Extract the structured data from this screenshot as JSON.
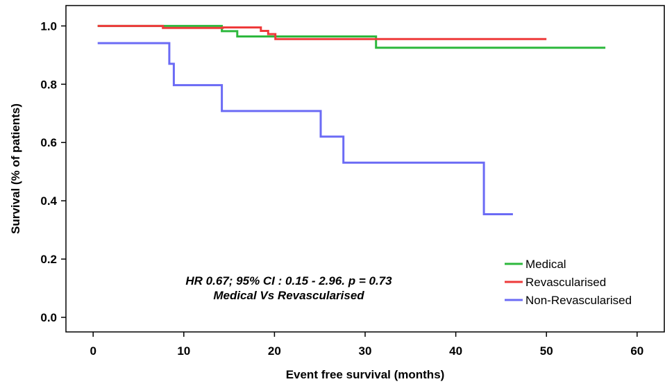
{
  "chart_data": {
    "type": "line",
    "step": true,
    "xlabel": "Event free survival (months)",
    "ylabel": "Survival (% of patients)",
    "xlim": [
      -3,
      63
    ],
    "ylim": [
      -0.05,
      1.07
    ],
    "xticks": [
      0,
      10,
      20,
      30,
      40,
      50,
      60
    ],
    "yticks": [
      0.0,
      0.2,
      0.4,
      0.6,
      0.8,
      1.0
    ],
    "yticklabels": [
      "0.0",
      "0.2",
      "0.4",
      "0.6",
      "0.8",
      "1.0"
    ],
    "grid": false,
    "legend_position": "bottom-right",
    "annotation": [
      "HR 0.67; 95% CI : 0.15 - 2.96. p = 0.73",
      "Medical Vs Revascularised"
    ],
    "series": [
      {
        "name": "Medical",
        "color": "#2db83d",
        "points": [
          [
            0.5,
            1.0
          ],
          [
            14.2,
            1.0
          ],
          [
            14.2,
            0.982
          ],
          [
            15.9,
            0.982
          ],
          [
            15.9,
            0.964
          ],
          [
            31.2,
            0.964
          ],
          [
            31.2,
            0.925
          ],
          [
            56.5,
            0.925
          ]
        ]
      },
      {
        "name": "Revascularised",
        "color": "#ee3a3a",
        "points": [
          [
            0.5,
            1.0
          ],
          [
            7.7,
            1.0
          ],
          [
            7.7,
            0.993
          ],
          [
            14.3,
            0.993
          ],
          [
            14.3,
            0.995
          ],
          [
            18.5,
            0.995
          ],
          [
            18.5,
            0.983
          ],
          [
            19.3,
            0.983
          ],
          [
            19.3,
            0.972
          ],
          [
            20.1,
            0.972
          ],
          [
            20.1,
            0.955
          ],
          [
            50.0,
            0.955
          ]
        ]
      },
      {
        "name": "Non-Revascularised",
        "color": "#6b6bf5",
        "points": [
          [
            0.5,
            0.941
          ],
          [
            8.4,
            0.941
          ],
          [
            8.4,
            0.87
          ],
          [
            8.9,
            0.87
          ],
          [
            8.9,
            0.797
          ],
          [
            14.2,
            0.797
          ],
          [
            14.2,
            0.708
          ],
          [
            25.1,
            0.708
          ],
          [
            25.1,
            0.62
          ],
          [
            27.6,
            0.62
          ],
          [
            27.6,
            0.531
          ],
          [
            43.1,
            0.531
          ],
          [
            43.1,
            0.354
          ],
          [
            46.3,
            0.354
          ]
        ]
      }
    ]
  }
}
